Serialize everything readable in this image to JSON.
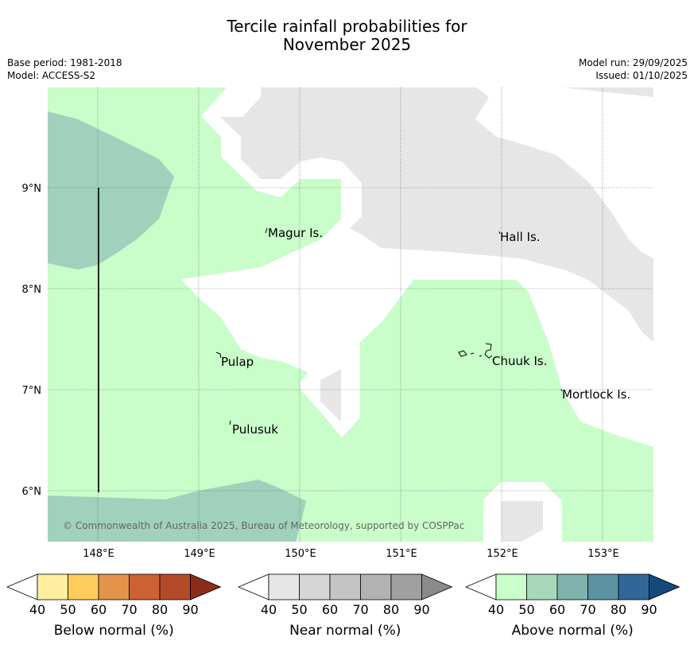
{
  "header": {
    "title_line1": "Tercile rainfall probabilities for",
    "title_line2": "November 2025",
    "base_period": "Base period: 1981-2018",
    "model": "Model: ACCESS-S2",
    "model_run": "Model run: 29/09/2025",
    "issued": "Issued: 01/10/2025"
  },
  "map": {
    "lat_labels": [
      "9°N",
      "8°N",
      "7°N",
      "6°N"
    ],
    "lon_labels": [
      "148°E",
      "149°E",
      "150°E",
      "151°E",
      "152°E",
      "153°E"
    ],
    "places": [
      "Magur Is.",
      "Hall Is.",
      "Pulap",
      "Chuuk Is.",
      "Mortlock Is.",
      "Pulusuk"
    ],
    "copyright": "© Commonwealth of Australia 2025, Bureau of Meteorology, supported by COSPPac"
  },
  "legends": {
    "below": {
      "title": "Below normal (%)",
      "ticks": [
        "40",
        "50",
        "60",
        "70",
        "80",
        "90"
      ],
      "colors": [
        "#ffffff",
        "#ffeda0",
        "#fecc5c",
        "#e3944a",
        "#cc6233",
        "#b34a28",
        "#8c2d1a"
      ]
    },
    "near": {
      "title": "Near normal (%)",
      "ticks": [
        "40",
        "50",
        "60",
        "70",
        "80",
        "90"
      ],
      "colors": [
        "#ffffff",
        "#e6e6e6",
        "#d6d6d6",
        "#c4c4c4",
        "#b2b2b2",
        "#a0a0a0",
        "#8a8a8a"
      ]
    },
    "above": {
      "title": "Above normal (%)",
      "ticks": [
        "40",
        "50",
        "60",
        "70",
        "80",
        "90"
      ],
      "colors": [
        "#ffffff",
        "#c9fdc9",
        "#a8d8b9",
        "#7fb3ab",
        "#5b93a0",
        "#316699",
        "#14497d"
      ]
    }
  }
}
